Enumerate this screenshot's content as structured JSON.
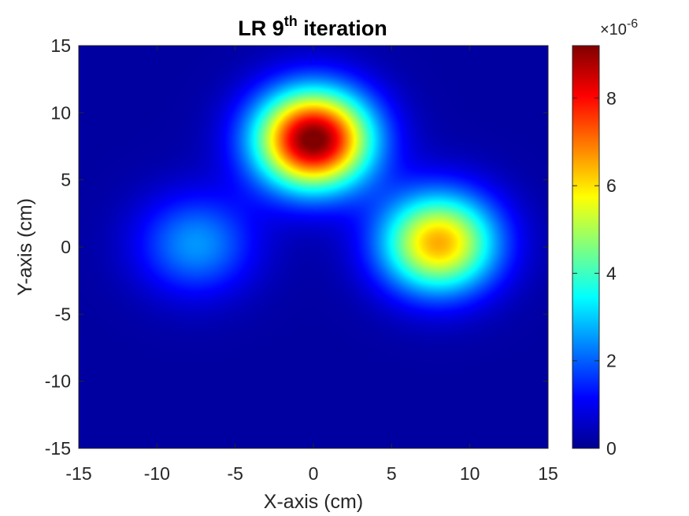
{
  "chart_data": {
    "type": "heatmap",
    "title": "LR 9",
    "title_superscript": "th",
    "title_suffix": " iteration",
    "xlabel": "X-axis (cm)",
    "ylabel": "Y-axis (cm)",
    "xlim": [
      -15,
      15
    ],
    "ylim": [
      -15,
      15
    ],
    "xticks": [
      -15,
      -10,
      -5,
      0,
      5,
      10,
      15
    ],
    "yticks": [
      -15,
      -10,
      -5,
      0,
      5,
      10,
      15
    ],
    "colormap": "jet",
    "colorbar": {
      "range": [
        0,
        9.2
      ],
      "ticks": [
        0,
        2,
        4,
        6,
        8
      ],
      "multiplier": "×10",
      "exponent": "-6"
    },
    "peaks": [
      {
        "x": 0,
        "y": 8,
        "value": 9.1
      },
      {
        "x": 8,
        "y": 0.3,
        "value": 6.2
      },
      {
        "x": -7.5,
        "y": 0.2,
        "value": 2.2
      }
    ]
  }
}
